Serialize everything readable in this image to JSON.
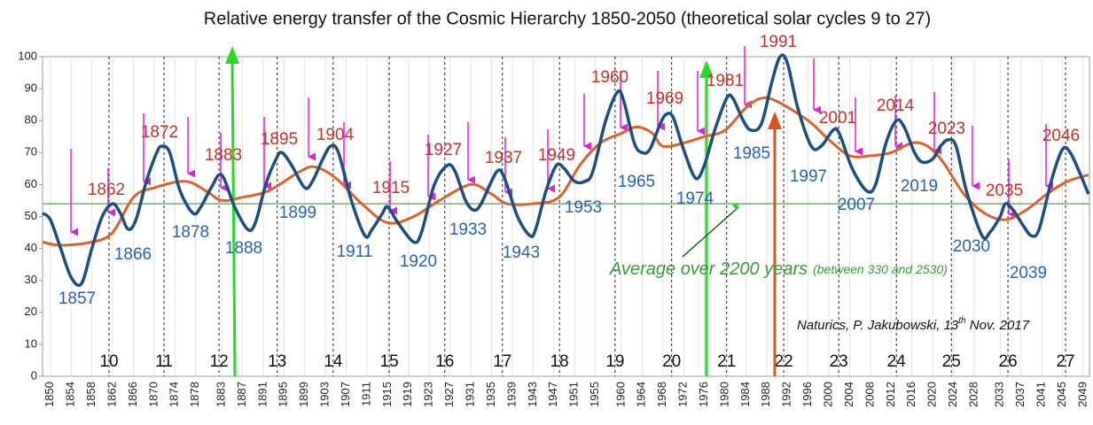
{
  "chart_data": {
    "type": "line",
    "title": "Relative energy transfer of the Cosmic Hierarchy 1850-2050 (theoretical solar cycles 9 to 27)",
    "xlim": [
      1848.5,
      2050.2
    ],
    "ylim": [
      0,
      100
    ],
    "yticks": [
      0,
      10,
      20,
      30,
      40,
      50,
      60,
      70,
      80,
      90,
      100
    ],
    "xticks": [
      1850,
      1854,
      1858,
      1862,
      1866,
      1870,
      1874,
      1878,
      1883,
      1887,
      1891,
      1895,
      1899,
      1903,
      1907,
      1911,
      1915,
      1919,
      1923,
      1927,
      1931,
      1935,
      1939,
      1943,
      1947,
      1951,
      1955,
      1960,
      1964,
      1968,
      1972,
      1976,
      1980,
      1984,
      1988,
      1992,
      1996,
      2000,
      2004,
      2008,
      2012,
      2016,
      2020,
      2024,
      2028,
      2033,
      2037,
      2041,
      2045,
      2049
    ],
    "series": [
      {
        "color": "#1c4f7e",
        "x": [
          1848.5,
          1850,
          1852,
          1854,
          1856,
          1858,
          1860,
          1862,
          1863.5,
          1865,
          1866.5,
          1868.5,
          1870.5,
          1871.5,
          1873,
          1875,
          1877.5,
          1879,
          1881,
          1883,
          1885.5,
          1888,
          1889.5,
          1891.5,
          1893.5,
          1894.6,
          1896.5,
          1899,
          1900.5,
          1902.5,
          1904,
          1905.5,
          1908,
          1910.6,
          1912,
          1914,
          1915,
          1917,
          1920,
          1921.5,
          1924,
          1926.5,
          1928,
          1930,
          1931.6,
          1933,
          1936,
          1937.5,
          1940,
          1942.4,
          1943.5,
          1945.5,
          1947.5,
          1949,
          1951,
          1953,
          1954.5,
          1957,
          1959.3,
          1960.5,
          1962.5,
          1964,
          1965.5,
          1967.5,
          1968.7,
          1970,
          1972,
          1974.3,
          1976,
          1978,
          1980.3,
          1981.5,
          1983.5,
          1985,
          1987,
          1989,
          1990.6,
          1992,
          1994,
          1996.6,
          1998.5,
          2000.8,
          2002,
          2004.5,
          2007.3,
          2009,
          2011,
          2013,
          2014.5,
          2016.5,
          2018,
          2020,
          2021.5,
          2023,
          2024.5,
          2026.5,
          2029.5,
          2031,
          2033,
          2034,
          2035.5,
          2037.5,
          2039,
          2040.5,
          2043,
          2045,
          2046.5,
          2048.5,
          2050
        ],
        "values": [
          51,
          49,
          40,
          31,
          29,
          40,
          50,
          54,
          51,
          46,
          49,
          61,
          70,
          72,
          70,
          58,
          51,
          53,
          59,
          63,
          53,
          46,
          48,
          60,
          68,
          70,
          66,
          59,
          61,
          68,
          72,
          70,
          55,
          44,
          46,
          51,
          53,
          48,
          42,
          45,
          60,
          66,
          64,
          55,
          52,
          54,
          64,
          62,
          50,
          44,
          46,
          58,
          66,
          65,
          61,
          61,
          64,
          80,
          89,
          86,
          73,
          70,
          71,
          79,
          82,
          81,
          71,
          62,
          66,
          77,
          87,
          87,
          80,
          77,
          79,
          92,
          100,
          98,
          84,
          72,
          72,
          77,
          76,
          65,
          58,
          60,
          73,
          80,
          78,
          70,
          67,
          68,
          72,
          74,
          72,
          58,
          44,
          45,
          50,
          54,
          52,
          47,
          44,
          46,
          62,
          71,
          70,
          63,
          57
        ]
      },
      {
        "color": "#e0602a",
        "x": [
          1848.5,
          1852,
          1858,
          1862,
          1866,
          1870,
          1876,
          1880,
          1883,
          1887,
          1892,
          1898,
          1901,
          1905,
          1910,
          1915,
          1920,
          1925,
          1931,
          1935,
          1938,
          1943,
          1948,
          1952,
          1956,
          1960,
          1963,
          1966,
          1968,
          1972,
          1976,
          1980,
          1984,
          1987,
          1990,
          1996,
          2000,
          2004,
          2008,
          2012,
          2016,
          2019,
          2022,
          2026,
          2030,
          2034,
          2038,
          2042,
          2046,
          2050
        ],
        "values": [
          42,
          41,
          42,
          45,
          56,
          59,
          61,
          58,
          55,
          56,
          58,
          64,
          65.5,
          62,
          54,
          48,
          50,
          55,
          60,
          57,
          54,
          54,
          56,
          66,
          73,
          76,
          78,
          76,
          72,
          73,
          75,
          77,
          84,
          87,
          86,
          80,
          74,
          69,
          69,
          70,
          73,
          72,
          67,
          57,
          51,
          49,
          52,
          57,
          61,
          63
        ]
      }
    ],
    "average": {
      "value": 54,
      "color": "#3c9c3c",
      "label": "Average over 2200 years",
      "note": "(between 330 and 2530)"
    },
    "cycles": {
      "labels": [
        "10",
        "11",
        "12",
        "13",
        "14",
        "15",
        "16",
        "17",
        "18",
        "19",
        "20",
        "21",
        "22",
        "23",
        "24",
        "25",
        "26",
        "27"
      ],
      "x": [
        1861.3,
        1871.9,
        1882.5,
        1893.7,
        1904.5,
        1915.3,
        1926,
        1937.1,
        1948.1,
        1958.8,
        1969.7,
        1980.3,
        1991.3,
        2001.9,
        2013,
        2023.6,
        2034.5,
        2045.6
      ]
    },
    "peak_labels": [
      "1862",
      "1872",
      "1883",
      "1895",
      "1904",
      "1915",
      "1927",
      "1937",
      "1949",
      "1960",
      "1969",
      "1981",
      "1991",
      "2001",
      "2014",
      "2023",
      "2035",
      "2046"
    ],
    "minimum_labels": [
      "1857",
      "1866",
      "1878",
      "1888",
      "1899",
      "1911",
      "1920",
      "1933",
      "1943",
      "1953",
      "1965",
      "1974",
      "1985",
      "1997",
      "2007",
      "2019",
      "2030",
      "2039"
    ],
    "credit": {
      "text": "Naturics, P. Jakubowski, 13",
      "superscript": "th",
      "rest": " Nov. 2017"
    }
  }
}
